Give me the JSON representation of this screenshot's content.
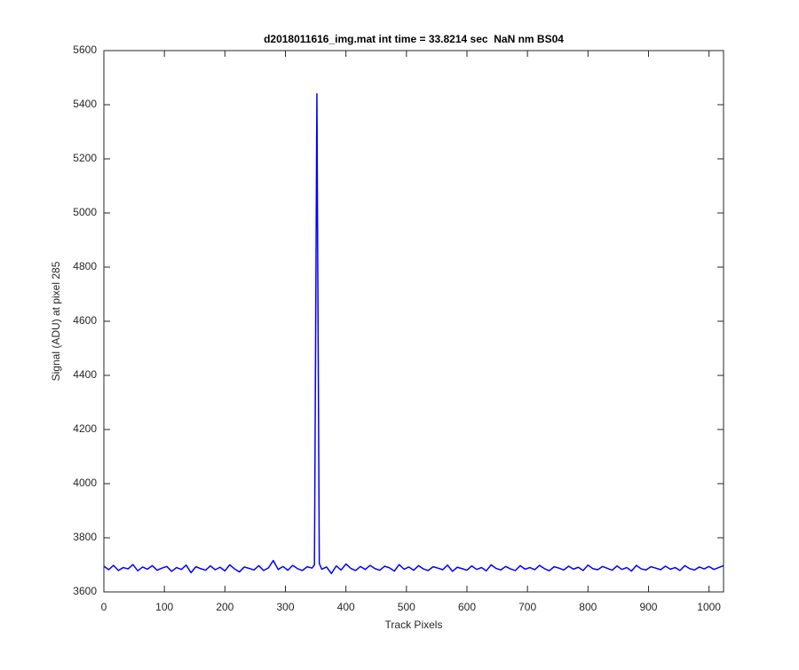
{
  "chart_data": {
    "type": "line",
    "title": "d2018011616_img.mat int time = 33.8214 sec  NaN nm BS04",
    "x_label": "Track Pixels",
    "y_label": "Signal (ADU) at pixel 285",
    "x": [
      0,
      8,
      16,
      24,
      32,
      40,
      48,
      56,
      64,
      72,
      80,
      88,
      96,
      104,
      112,
      120,
      128,
      136,
      144,
      152,
      160,
      168,
      176,
      184,
      192,
      200,
      208,
      216,
      224,
      232,
      240,
      248,
      256,
      264,
      272,
      280,
      288,
      296,
      304,
      312,
      320,
      328,
      336,
      344,
      348,
      352,
      356,
      360,
      368,
      376,
      384,
      392,
      400,
      408,
      416,
      424,
      432,
      440,
      448,
      456,
      464,
      472,
      480,
      488,
      496,
      504,
      512,
      520,
      528,
      536,
      544,
      552,
      560,
      568,
      576,
      584,
      592,
      600,
      608,
      616,
      624,
      632,
      640,
      648,
      656,
      664,
      672,
      680,
      688,
      696,
      704,
      712,
      720,
      728,
      736,
      744,
      752,
      760,
      768,
      776,
      784,
      792,
      800,
      808,
      816,
      824,
      832,
      840,
      848,
      856,
      864,
      872,
      880,
      888,
      896,
      904,
      912,
      920,
      928,
      936,
      944,
      952,
      960,
      968,
      976,
      984,
      992,
      1000,
      1008,
      1016,
      1024
    ],
    "series": [
      {
        "color": "#0000ff",
        "values": [
          3695,
          3682,
          3698,
          3679,
          3690,
          3685,
          3701,
          3678,
          3692,
          3684,
          3697,
          3680,
          3688,
          3694,
          3676,
          3690,
          3683,
          3699,
          3671,
          3693,
          3686,
          3680,
          3696,
          3682,
          3691,
          3678,
          3700,
          3685,
          3674,
          3692,
          3687,
          3681,
          3697,
          3679,
          3689,
          3716,
          3683,
          3694,
          3680,
          3698,
          3686,
          3679,
          3693,
          3688,
          3700,
          5440,
          3705,
          3684,
          3692,
          3668,
          3696,
          3681,
          3703,
          3687,
          3679,
          3694,
          3683,
          3698,
          3686,
          3680,
          3695,
          3689,
          3677,
          3701,
          3684,
          3692,
          3680,
          3697,
          3685,
          3679,
          3693,
          3688,
          3682,
          3699,
          3676,
          3691,
          3686,
          3680,
          3696,
          3683,
          3690,
          3678,
          3700,
          3687,
          3681,
          3694,
          3685,
          3679,
          3697,
          3684,
          3690,
          3682,
          3698,
          3686,
          3678,
          3693,
          3688,
          3681,
          3695,
          3684,
          3691,
          3679,
          3699,
          3686,
          3682,
          3694,
          3687,
          3680,
          3696,
          3683,
          3690,
          3677,
          3698,
          3685,
          3681,
          3693,
          3688,
          3682,
          3695,
          3684,
          3690,
          3679,
          3697,
          3686,
          3681,
          3692,
          3685,
          3694,
          3683,
          3690,
          3697
        ]
      }
    ],
    "xlim": [
      0,
      1024
    ],
    "ylim": [
      3600,
      5600
    ],
    "xticks": [
      0,
      100,
      200,
      300,
      400,
      500,
      600,
      700,
      800,
      900,
      1000
    ],
    "yticks": [
      3600,
      3800,
      4000,
      4200,
      4400,
      4600,
      4800,
      5000,
      5200,
      5400,
      5600
    ]
  }
}
